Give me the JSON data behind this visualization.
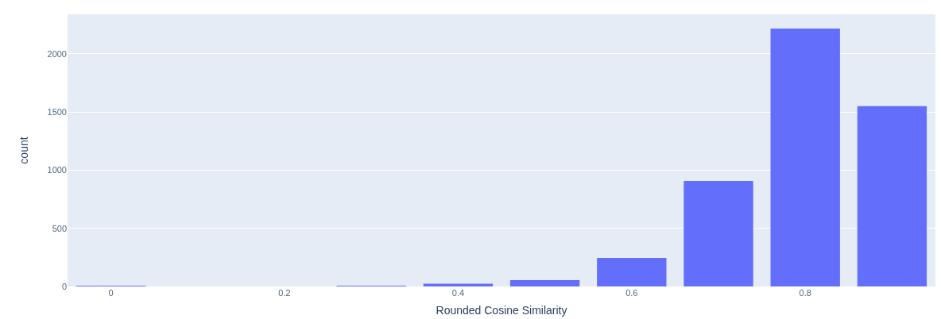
{
  "chart_data": {
    "type": "bar",
    "xlabel": "Rounded Cosine Similarity",
    "ylabel": "count",
    "x": [
      0,
      0.1,
      0.2,
      0.3,
      0.4,
      0.5,
      0.6,
      0.7,
      0.8,
      0.9
    ],
    "values": [
      2,
      0,
      0,
      2,
      24,
      55,
      246,
      908,
      2218,
      1550
    ],
    "color": "#636efa",
    "xlim": [
      -0.05,
      0.95
    ],
    "xticks": [
      0,
      0.2,
      0.4,
      0.6,
      0.8
    ],
    "ylim": [
      0,
      2340
    ],
    "yticks": [
      0,
      500,
      1000,
      1500,
      2000
    ],
    "grid": "y"
  }
}
